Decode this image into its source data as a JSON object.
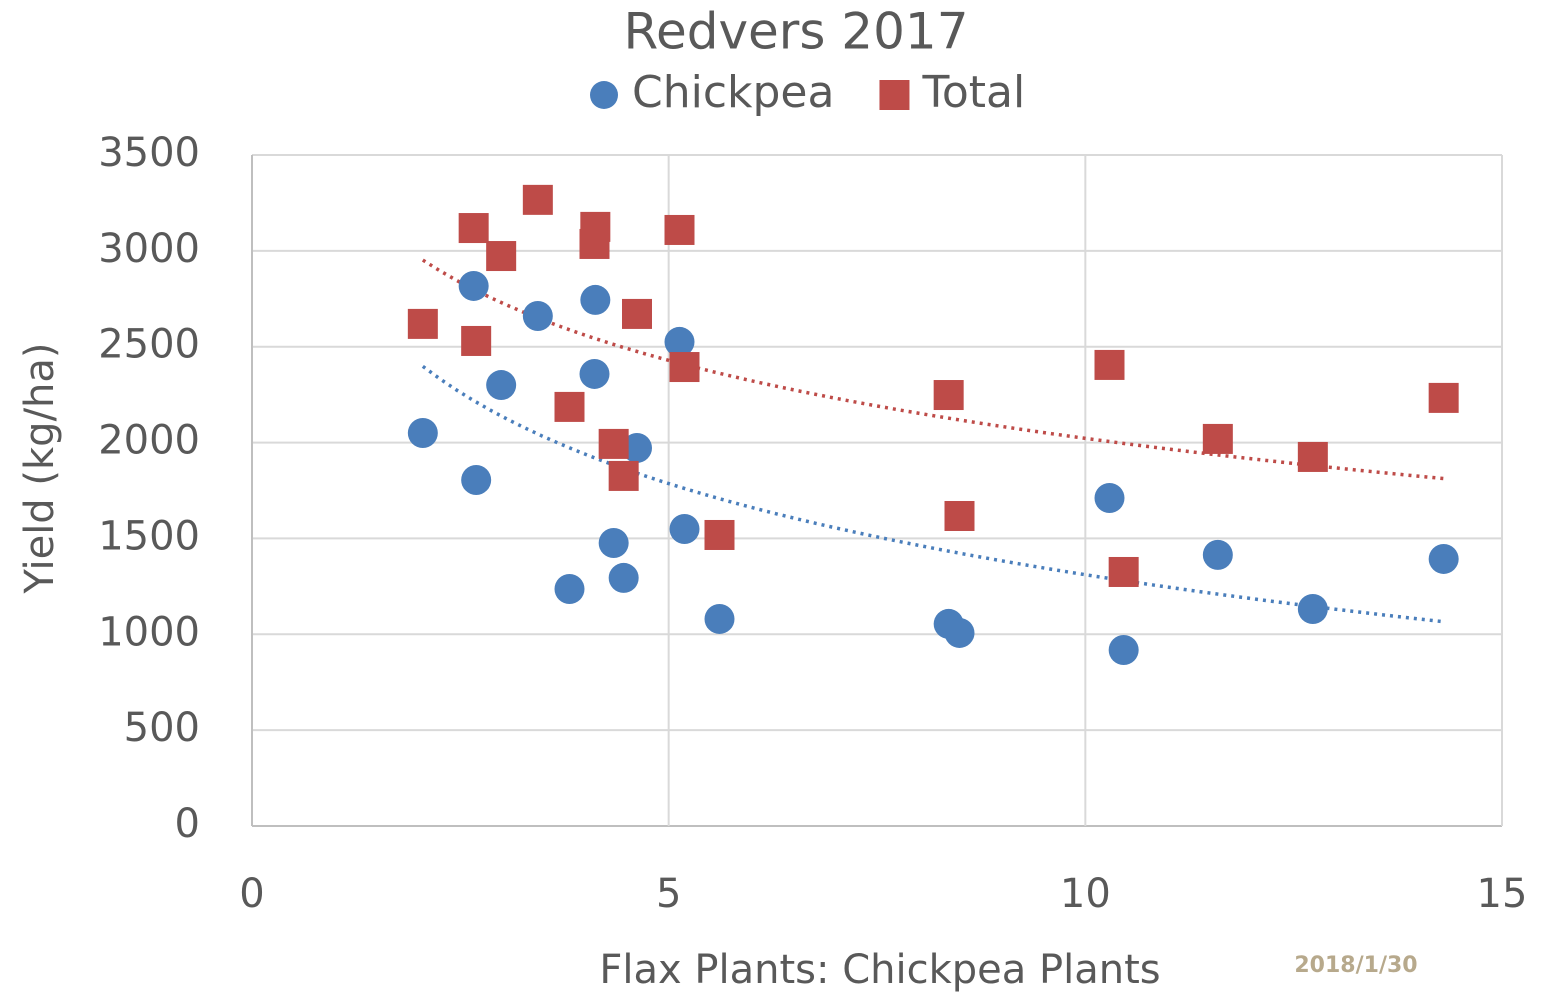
{
  "chart_data": {
    "type": "scatter",
    "title": "Redvers 2017",
    "x_label": "Flax Plants: Chickpea  Plants",
    "y_label": "Yield (kg/ha)",
    "annotation": "2018/1/30",
    "xlim": [
      0,
      15
    ],
    "xticks": [
      0,
      5,
      10,
      15
    ],
    "ylim": [
      0,
      3500
    ],
    "yticks": [
      0,
      500,
      1000,
      1500,
      2000,
      2500,
      3000,
      3500
    ],
    "grid": true,
    "legend": "top",
    "trendline": "logarithmic",
    "series": [
      {
        "name": "Chickpea",
        "color": "#4a7ebb",
        "marker": "circle",
        "x": [
          2.05,
          2.69,
          2.66,
          2.99,
          3.43,
          3.81,
          4.12,
          4.11,
          4.34,
          4.46,
          4.62,
          5.13,
          5.19,
          5.61,
          8.36,
          8.49,
          10.29,
          10.46,
          11.59,
          12.73,
          14.3
        ],
        "values": [
          2050,
          1805,
          2817,
          2300,
          2660,
          1236,
          2744,
          2358,
          1476,
          1294,
          1972,
          2525,
          1549,
          1080,
          1054,
          1007,
          1711,
          918,
          1414,
          1132,
          1393
        ]
      },
      {
        "name": "Total",
        "color": "#be4b48",
        "marker": "square",
        "x": [
          2.05,
          2.66,
          2.69,
          2.99,
          3.43,
          3.81,
          4.12,
          4.11,
          4.34,
          4.46,
          4.62,
          5.13,
          5.19,
          5.61,
          8.36,
          8.49,
          10.29,
          10.46,
          11.59,
          12.73,
          14.3
        ],
        "values": [
          2619,
          3119,
          2530,
          2973,
          3266,
          2186,
          3125,
          3036,
          1993,
          1826,
          2671,
          3109,
          2394,
          1518,
          2248,
          1617,
          2405,
          1325,
          2019,
          1925,
          2233
        ]
      }
    ]
  }
}
